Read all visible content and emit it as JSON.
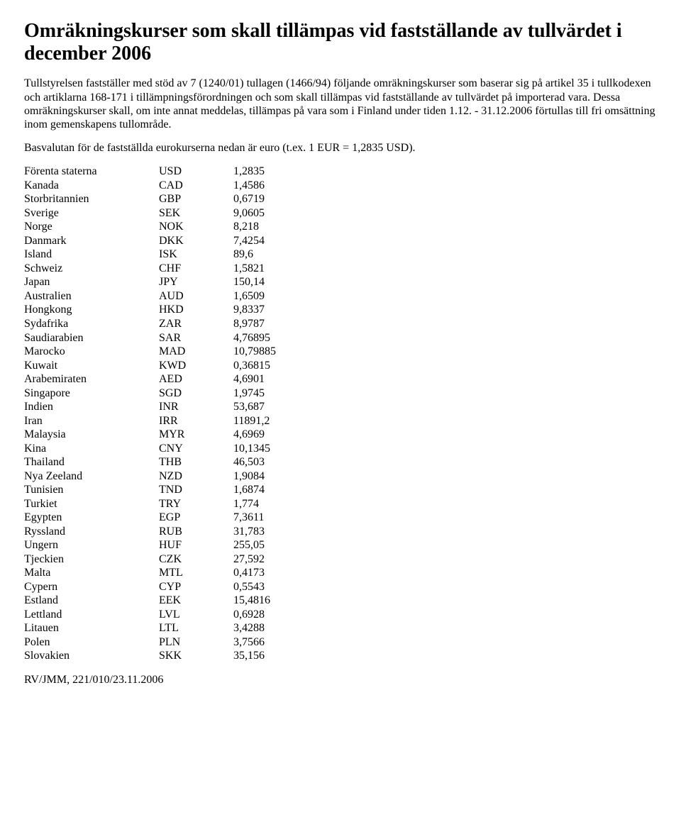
{
  "title": "Omräkningskurser som skall tillämpas vid fastställande av tullvärdet i december 2006",
  "para1": "Tullstyrelsen fastställer med stöd av 7 (1240/01) tullagen (1466/94) följande omräkningskurser som baserar sig på artikel 35 i tullkodexen och artiklarna 168-171 i tillämpningsförordningen och som skall tillämpas vid fastställande av tullvärdet på importerad vara. Dessa omräkningskurser skall, om inte annat meddelas, tillämpas på vara som i Finland under tiden 1.12. - 31.12.2006 förtullas till fri omsättning inom gemenskapens tullområde.",
  "para2": "Basvalutan för de fastställda eurokurserna nedan är euro (t.ex. 1 EUR = 1,2835 USD).",
  "rates": [
    {
      "country": "Förenta staterna",
      "code": "USD",
      "value": "1,2835"
    },
    {
      "country": "Kanada",
      "code": "CAD",
      "value": "1,4586"
    },
    {
      "country": "Storbritannien",
      "code": "GBP",
      "value": "0,6719"
    },
    {
      "country": "Sverige",
      "code": "SEK",
      "value": "9,0605"
    },
    {
      "country": "Norge",
      "code": "NOK",
      "value": "8,218"
    },
    {
      "country": "Danmark",
      "code": "DKK",
      "value": "7,4254"
    },
    {
      "country": "Island",
      "code": "ISK",
      "value": "89,6"
    },
    {
      "country": "Schweiz",
      "code": "CHF",
      "value": "1,5821"
    },
    {
      "country": "Japan",
      "code": "JPY",
      "value": "150,14"
    },
    {
      "country": "Australien",
      "code": "AUD",
      "value": "1,6509"
    },
    {
      "country": "Hongkong",
      "code": "HKD",
      "value": "9,8337"
    },
    {
      "country": "Sydafrika",
      "code": "ZAR",
      "value": "8,9787"
    },
    {
      "country": "Saudiarabien",
      "code": "SAR",
      "value": "4,76895"
    },
    {
      "country": "Marocko",
      "code": "MAD",
      "value": "10,79885"
    },
    {
      "country": "Kuwait",
      "code": "KWD",
      "value": "0,36815"
    },
    {
      "country": "Arabemiraten",
      "code": "AED",
      "value": "4,6901"
    },
    {
      "country": "Singapore",
      "code": "SGD",
      "value": "1,9745"
    },
    {
      "country": "Indien",
      "code": "INR",
      "value": "53,687"
    },
    {
      "country": "Iran",
      "code": "IRR",
      "value": "11891,2"
    },
    {
      "country": "Malaysia",
      "code": "MYR",
      "value": "4,6969"
    },
    {
      "country": "Kina",
      "code": "CNY",
      "value": "10,1345"
    },
    {
      "country": "Thailand",
      "code": "THB",
      "value": "46,503"
    },
    {
      "country": "Nya Zeeland",
      "code": "NZD",
      "value": "1,9084"
    },
    {
      "country": "Tunisien",
      "code": "TND",
      "value": "1,6874"
    },
    {
      "country": "Turkiet",
      "code": "TRY",
      "value": "1,774"
    },
    {
      "country": "Egypten",
      "code": "EGP",
      "value": "7,3611"
    },
    {
      "country": "Ryssland",
      "code": "RUB",
      "value": "31,783"
    },
    {
      "country": "Ungern",
      "code": "HUF",
      "value": "255,05"
    },
    {
      "country": "Tjeckien",
      "code": "CZK",
      "value": "27,592"
    },
    {
      "country": "Malta",
      "code": "MTL",
      "value": "0,4173"
    },
    {
      "country": "Cypern",
      "code": "CYP",
      "value": "0,5543"
    },
    {
      "country": "Estland",
      "code": "EEK",
      "value": "15,4816"
    },
    {
      "country": "Lettland",
      "code": "LVL",
      "value": "0,6928"
    },
    {
      "country": "Litauen",
      "code": "LTL",
      "value": "3,4288"
    },
    {
      "country": "Polen",
      "code": "PLN",
      "value": "3,7566"
    },
    {
      "country": "Slovakien",
      "code": "SKK",
      "value": "35,156"
    }
  ],
  "footer": "RV/JMM, 221/010/23.11.2006"
}
